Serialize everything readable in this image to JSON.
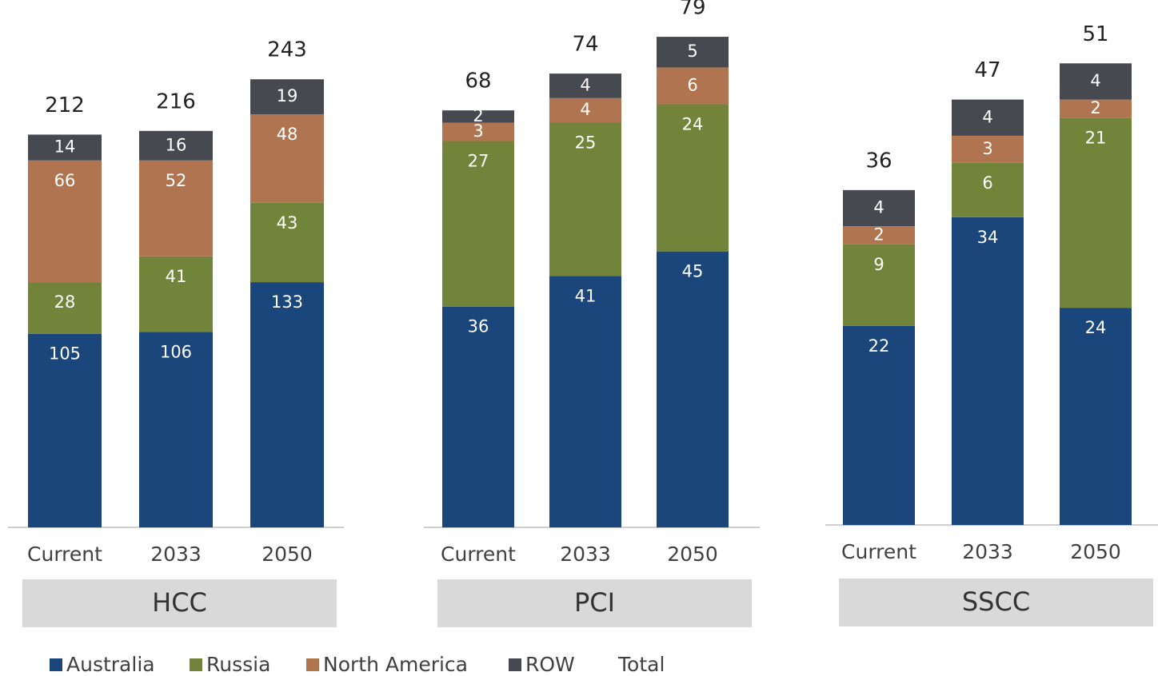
{
  "chart_data": [
    {
      "type": "bar",
      "stacked": true,
      "group": "HCC",
      "categories": [
        "Current",
        "2033",
        "2050"
      ],
      "series": [
        {
          "name": "Australia",
          "color": "#1b467c",
          "values": [
            105,
            106,
            133
          ]
        },
        {
          "name": "Russia",
          "color": "#71843a",
          "values": [
            28,
            41,
            43
          ]
        },
        {
          "name": "North America",
          "color": "#b07550",
          "values": [
            66,
            52,
            48
          ]
        },
        {
          "name": "ROW",
          "color": "#46494f",
          "values": [
            14,
            16,
            19
          ]
        }
      ],
      "totals": [
        212,
        216,
        243
      ],
      "totals_name": "Total",
      "ylim": [
        0,
        286
      ]
    },
    {
      "type": "bar",
      "stacked": true,
      "group": "PCI",
      "categories": [
        "Current",
        "2033",
        "2050"
      ],
      "series": [
        {
          "name": "Australia",
          "color": "#1b467c",
          "values": [
            36,
            41,
            45
          ]
        },
        {
          "name": "Russia",
          "color": "#71843a",
          "values": [
            27,
            25,
            24
          ]
        },
        {
          "name": "North America",
          "color": "#b07550",
          "values": [
            3,
            4,
            6
          ]
        },
        {
          "name": "ROW",
          "color": "#46494f",
          "values": [
            2,
            4,
            5
          ]
        }
      ],
      "totals": [
        68,
        74,
        79
      ],
      "ylim": [
        0,
        86
      ]
    },
    {
      "type": "bar",
      "stacked": true,
      "group": "SSCC",
      "categories": [
        "Current",
        "2033",
        "2050"
      ],
      "series": [
        {
          "name": "Australia",
          "color": "#1b467c",
          "values": [
            22,
            34,
            24
          ]
        },
        {
          "name": "Russia",
          "color": "#71843a",
          "values": [
            9,
            6,
            21
          ]
        },
        {
          "name": "North America",
          "color": "#b07550",
          "values": [
            2,
            3,
            2
          ]
        },
        {
          "name": "ROW",
          "color": "#46494f",
          "values": [
            4,
            4,
            4
          ]
        }
      ],
      "totals": [
        36,
        47,
        51
      ],
      "ylim": [
        0,
        58
      ]
    }
  ]
}
